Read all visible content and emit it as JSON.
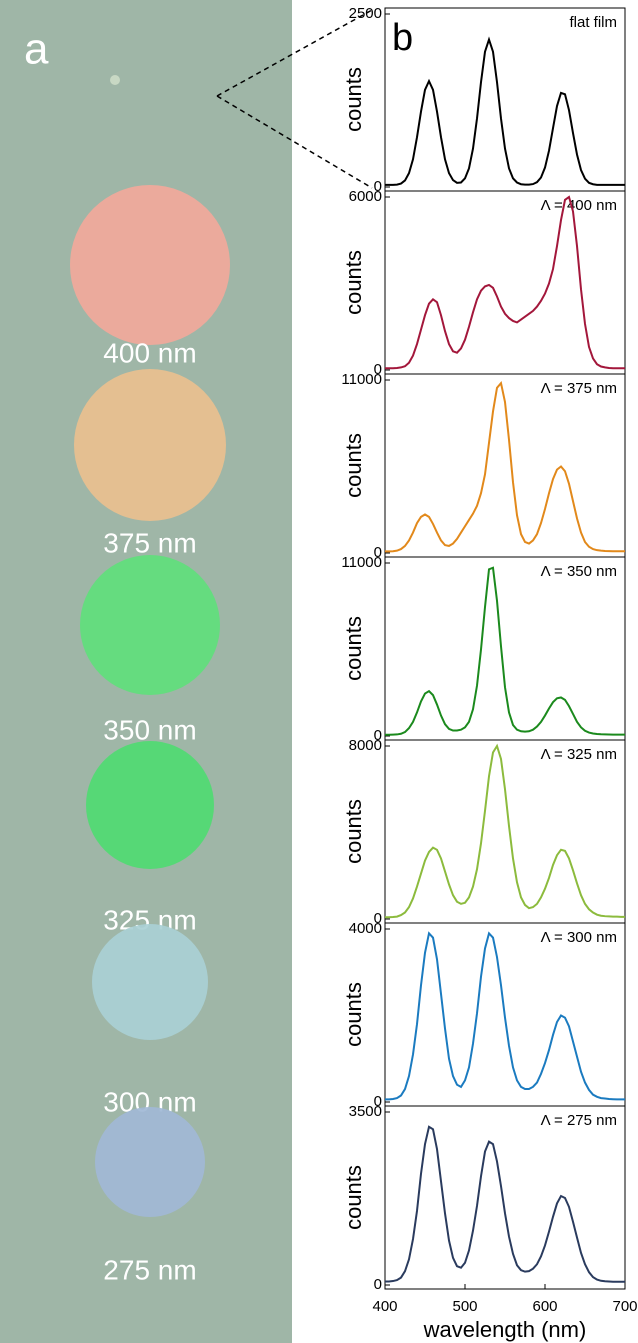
{
  "panel_a": {
    "label": "a",
    "spots": [
      "400 nm",
      "375 nm",
      "350 nm",
      "325 nm",
      "300 nm",
      "275 nm"
    ],
    "spot_colors": [
      "#f1a99b",
      "#e9c08f",
      "#5fe07c",
      "#4fdb72",
      "#a9d0d5",
      "#a1b9d6"
    ]
  },
  "panel_b": {
    "label": "b"
  },
  "chart_data": [
    {
      "type": "line",
      "annotation": "flat film",
      "ylabel": "counts",
      "color": "#000000",
      "xlim": [
        400,
        700
      ],
      "ylim": [
        0,
        2500
      ],
      "yticks": [
        0,
        2500
      ],
      "x": [
        400,
        405,
        410,
        415,
        420,
        425,
        430,
        435,
        440,
        445,
        450,
        455,
        460,
        465,
        470,
        475,
        480,
        485,
        490,
        495,
        500,
        505,
        510,
        515,
        520,
        525,
        530,
        535,
        540,
        545,
        550,
        555,
        560,
        565,
        570,
        575,
        580,
        585,
        590,
        595,
        600,
        605,
        610,
        615,
        620,
        625,
        630,
        635,
        640,
        645,
        650,
        655,
        660,
        665,
        670,
        675,
        680,
        685,
        690,
        695,
        700
      ],
      "values": [
        30,
        30,
        30,
        35,
        50,
        95,
        200,
        400,
        720,
        1090,
        1405,
        1530,
        1405,
        1090,
        720,
        400,
        200,
        100,
        60,
        65,
        125,
        270,
        555,
        990,
        1515,
        1955,
        2130,
        1955,
        1515,
        990,
        555,
        270,
        125,
        65,
        40,
        35,
        35,
        42,
        70,
        137,
        281,
        525,
        850,
        1170,
        1360,
        1340,
        1110,
        780,
        470,
        245,
        120,
        60,
        40,
        30,
        30,
        30,
        30,
        30,
        30,
        30,
        30
      ]
    },
    {
      "type": "line",
      "annotation": "Λ = 400 nm",
      "ylabel": "counts",
      "color": "#a3173b",
      "xlim": [
        400,
        700
      ],
      "ylim": [
        0,
        6000
      ],
      "yticks": [
        0,
        6000
      ],
      "x": [
        400,
        405,
        410,
        415,
        420,
        425,
        430,
        435,
        440,
        445,
        450,
        455,
        460,
        465,
        470,
        475,
        480,
        485,
        490,
        495,
        500,
        505,
        510,
        515,
        520,
        525,
        530,
        535,
        540,
        545,
        550,
        555,
        560,
        565,
        570,
        575,
        580,
        585,
        590,
        595,
        600,
        605,
        610,
        615,
        620,
        625,
        630,
        635,
        640,
        645,
        650,
        655,
        660,
        665,
        670,
        675,
        680,
        685,
        690,
        695,
        700
      ],
      "values": [
        60,
        60,
        60,
        70,
        90,
        130,
        250,
        500,
        900,
        1400,
        1900,
        2300,
        2450,
        2350,
        1900,
        1350,
        900,
        650,
        600,
        750,
        1050,
        1500,
        2000,
        2450,
        2750,
        2900,
        2950,
        2850,
        2550,
        2200,
        1950,
        1800,
        1700,
        1650,
        1750,
        1850,
        1950,
        2050,
        2200,
        2400,
        2650,
        3000,
        3500,
        4300,
        5200,
        5900,
        6000,
        5500,
        4300,
        2800,
        1600,
        800,
        400,
        200,
        120,
        90,
        70,
        60,
        60,
        60,
        60
      ]
    },
    {
      "type": "line",
      "annotation": "Λ = 375 nm",
      "ylabel": "counts",
      "color": "#e2891b",
      "xlim": [
        400,
        700
      ],
      "ylim": [
        0,
        11000
      ],
      "yticks": [
        0,
        11000
      ],
      "x": [
        400,
        405,
        410,
        415,
        420,
        425,
        430,
        435,
        440,
        445,
        450,
        455,
        460,
        465,
        470,
        475,
        480,
        485,
        490,
        495,
        500,
        505,
        510,
        515,
        520,
        525,
        530,
        535,
        540,
        545,
        550,
        555,
        560,
        565,
        570,
        575,
        580,
        585,
        590,
        595,
        600,
        605,
        610,
        615,
        620,
        625,
        630,
        635,
        640,
        645,
        650,
        655,
        660,
        665,
        670,
        675,
        680,
        685,
        690,
        695,
        700
      ],
      "values": [
        100,
        100,
        110,
        150,
        250,
        450,
        800,
        1300,
        1900,
        2300,
        2450,
        2300,
        1850,
        1300,
        800,
        500,
        450,
        600,
        900,
        1300,
        1700,
        2100,
        2500,
        3000,
        3800,
        5000,
        7000,
        9000,
        10500,
        10800,
        9600,
        7200,
        4500,
        2400,
        1200,
        700,
        600,
        800,
        1200,
        1900,
        2800,
        3800,
        4700,
        5300,
        5500,
        5200,
        4400,
        3300,
        2200,
        1300,
        700,
        400,
        250,
        180,
        150,
        130,
        120,
        110,
        110,
        110,
        110
      ]
    },
    {
      "type": "line",
      "annotation": "Λ = 350 nm",
      "ylabel": "counts",
      "color": "#1b8a1d",
      "xlim": [
        400,
        700
      ],
      "ylim": [
        0,
        11000
      ],
      "yticks": [
        0,
        11000
      ],
      "x": [
        400,
        405,
        410,
        415,
        420,
        425,
        430,
        435,
        440,
        445,
        450,
        455,
        460,
        465,
        470,
        475,
        480,
        485,
        490,
        495,
        500,
        505,
        510,
        515,
        520,
        525,
        530,
        535,
        540,
        545,
        550,
        555,
        560,
        565,
        570,
        575,
        580,
        585,
        590,
        595,
        600,
        605,
        610,
        615,
        620,
        625,
        630,
        635,
        640,
        645,
        650,
        655,
        660,
        665,
        670,
        675,
        680,
        685,
        690,
        695,
        700
      ],
      "values": [
        80,
        80,
        90,
        100,
        140,
        250,
        500,
        900,
        1500,
        2200,
        2700,
        2850,
        2600,
        2000,
        1300,
        750,
        450,
        350,
        350,
        400,
        550,
        900,
        1700,
        3200,
        5500,
        8200,
        10600,
        10700,
        8600,
        5700,
        3100,
        1500,
        700,
        400,
        300,
        280,
        300,
        400,
        600,
        900,
        1300,
        1750,
        2150,
        2400,
        2450,
        2300,
        1900,
        1400,
        900,
        550,
        330,
        220,
        160,
        130,
        110,
        100,
        95,
        90,
        90,
        90,
        90
      ]
    },
    {
      "type": "line",
      "annotation": "Λ = 325 nm",
      "ylabel": "counts",
      "color": "#8cbb3d",
      "xlim": [
        400,
        700
      ],
      "ylim": [
        0,
        8000
      ],
      "yticks": [
        0,
        8000
      ],
      "x": [
        400,
        405,
        410,
        415,
        420,
        425,
        430,
        435,
        440,
        445,
        450,
        455,
        460,
        465,
        470,
        475,
        480,
        485,
        490,
        495,
        500,
        505,
        510,
        515,
        520,
        525,
        530,
        535,
        540,
        545,
        550,
        555,
        560,
        565,
        570,
        575,
        580,
        585,
        590,
        595,
        600,
        605,
        610,
        615,
        620,
        625,
        630,
        635,
        640,
        645,
        650,
        655,
        660,
        665,
        670,
        675,
        680,
        685,
        690,
        695,
        700
      ],
      "values": [
        80,
        80,
        90,
        110,
        180,
        300,
        550,
        950,
        1500,
        2100,
        2700,
        3100,
        3300,
        3200,
        2800,
        2200,
        1600,
        1100,
        800,
        700,
        750,
        1000,
        1500,
        2300,
        3500,
        5000,
        6600,
        7700,
        8000,
        7400,
        6000,
        4300,
        2800,
        1700,
        1000,
        650,
        500,
        550,
        700,
        1000,
        1400,
        1900,
        2500,
        2950,
        3200,
        3150,
        2800,
        2250,
        1650,
        1100,
        700,
        450,
        300,
        200,
        150,
        130,
        120,
        110,
        110,
        100,
        100
      ]
    },
    {
      "type": "line",
      "annotation": "Λ = 300 nm",
      "ylabel": "counts",
      "color": "#1b7bc0",
      "xlim": [
        400,
        700
      ],
      "ylim": [
        0,
        4000
      ],
      "yticks": [
        0,
        4000
      ],
      "x": [
        400,
        405,
        410,
        415,
        420,
        425,
        430,
        435,
        440,
        445,
        450,
        455,
        460,
        465,
        470,
        475,
        480,
        485,
        490,
        495,
        500,
        505,
        510,
        515,
        520,
        525,
        530,
        535,
        540,
        545,
        550,
        555,
        560,
        565,
        570,
        575,
        580,
        585,
        590,
        595,
        600,
        605,
        610,
        615,
        620,
        625,
        630,
        635,
        640,
        645,
        650,
        655,
        660,
        665,
        670,
        675,
        680,
        685,
        690,
        695,
        700
      ],
      "values": [
        60,
        60,
        70,
        90,
        150,
        300,
        600,
        1100,
        1800,
        2700,
        3450,
        3900,
        3800,
        3300,
        2500,
        1700,
        1000,
        600,
        400,
        350,
        500,
        800,
        1350,
        2050,
        2900,
        3550,
        3900,
        3800,
        3350,
        2700,
        1950,
        1300,
        800,
        500,
        350,
        300,
        300,
        350,
        450,
        650,
        900,
        1200,
        1550,
        1850,
        2000,
        1950,
        1750,
        1400,
        1050,
        700,
        450,
        280,
        170,
        120,
        90,
        80,
        70,
        65,
        60,
        60,
        60
      ]
    },
    {
      "type": "line",
      "annotation": "Λ = 275 nm",
      "ylabel": "counts",
      "xlabel": "wavelength (nm)",
      "color": "#2a3b5e",
      "xlim": [
        400,
        700
      ],
      "xticks": [
        400,
        500,
        600,
        700
      ],
      "ylim": [
        0,
        3500
      ],
      "yticks": [
        0,
        3500
      ],
      "x": [
        400,
        405,
        410,
        415,
        420,
        425,
        430,
        435,
        440,
        445,
        450,
        455,
        460,
        465,
        470,
        475,
        480,
        485,
        490,
        495,
        500,
        505,
        510,
        515,
        520,
        525,
        530,
        535,
        540,
        545,
        550,
        555,
        560,
        565,
        570,
        575,
        580,
        585,
        590,
        595,
        600,
        605,
        610,
        615,
        620,
        625,
        630,
        635,
        640,
        645,
        650,
        655,
        660,
        665,
        670,
        675,
        680,
        685,
        690,
        695,
        700
      ],
      "values": [
        70,
        70,
        80,
        100,
        150,
        280,
        520,
        930,
        1500,
        2250,
        2850,
        3200,
        3150,
        2750,
        2100,
        1450,
        900,
        550,
        380,
        350,
        450,
        700,
        1100,
        1600,
        2200,
        2700,
        2900,
        2850,
        2500,
        2000,
        1450,
        980,
        630,
        400,
        300,
        270,
        280,
        330,
        420,
        580,
        800,
        1080,
        1380,
        1650,
        1800,
        1760,
        1580,
        1280,
        960,
        650,
        420,
        260,
        160,
        110,
        85,
        75,
        70,
        65,
        65,
        65,
        65
      ]
    }
  ]
}
